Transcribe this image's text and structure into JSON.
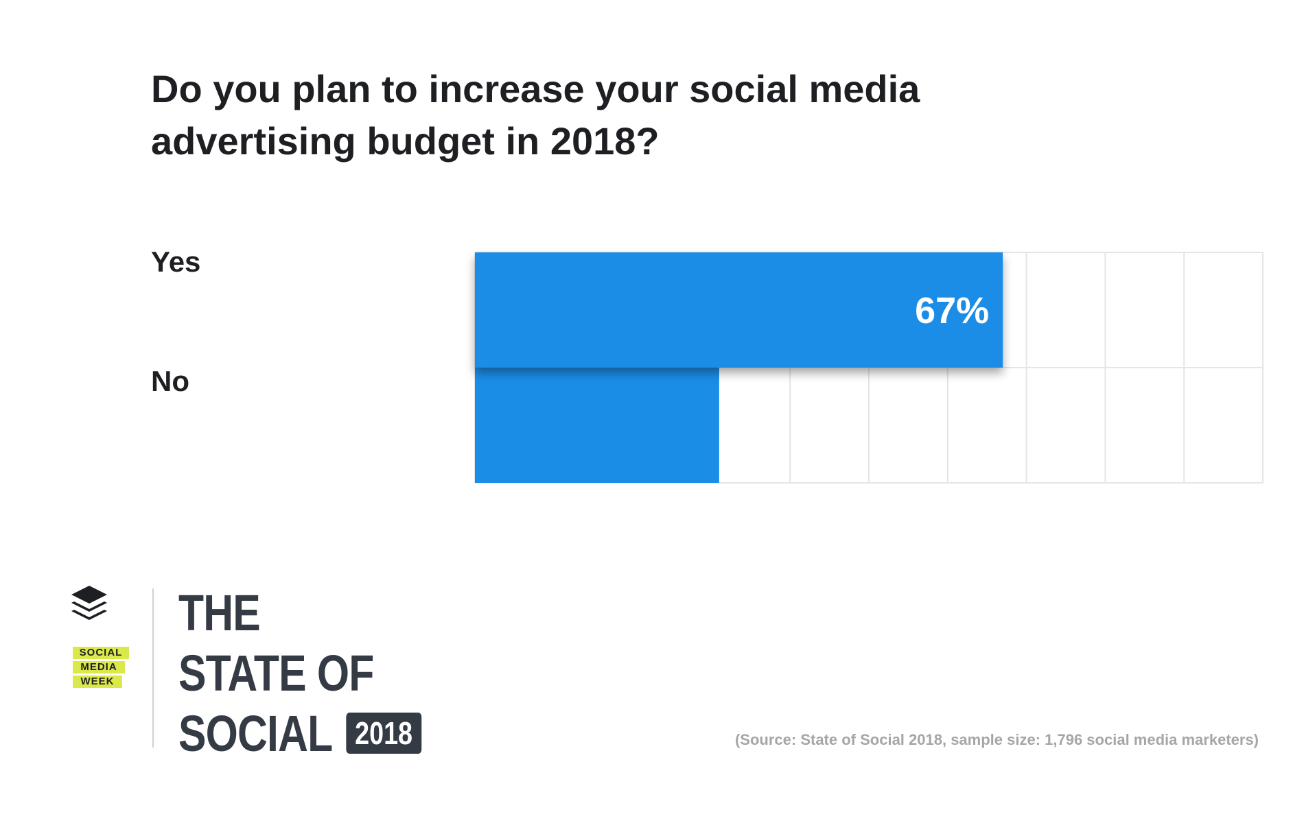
{
  "chart_data": {
    "type": "bar",
    "orientation": "horizontal",
    "title": "Do you plan to increase your social media advertising budget in 2018?",
    "categories": [
      "Yes",
      "No"
    ],
    "values": [
      67,
      31
    ],
    "value_labels": [
      "67%",
      ""
    ],
    "xlim": [
      0,
      100
    ],
    "grid": true,
    "xlabel": "",
    "ylabel": ""
  },
  "colors": {
    "bar": "#1a8de7",
    "grid": "#e5e5e5",
    "title": "#1d1f22",
    "brand_dark": "#343b44",
    "badge_yellow": "#dbe84a",
    "source_text": "#a6a6a6"
  },
  "source": "(Source: State of Social 2018, sample size: 1,796 social media marketers)",
  "branding": {
    "logo_icon": "buffer-stack-icon",
    "smw_lines": [
      "SOCIAL",
      "MEDIA",
      "WEEK"
    ],
    "report_lines": [
      "THE",
      "STATE OF",
      "SOCIAL"
    ],
    "year": "2018"
  }
}
